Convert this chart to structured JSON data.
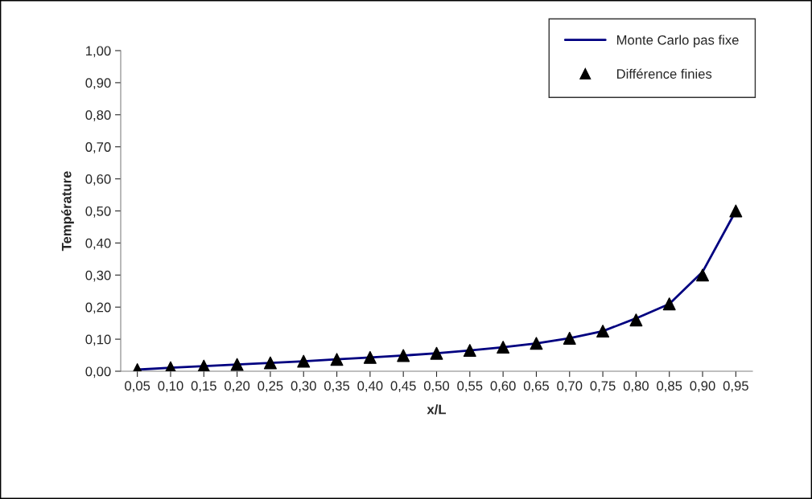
{
  "chart_data": {
    "type": "line",
    "xlabel": "x/L",
    "ylabel": "Température",
    "categories": [
      "0,05",
      "0,10",
      "0,15",
      "0,20",
      "0,25",
      "0,30",
      "0,35",
      "0,40",
      "0,45",
      "0,50",
      "0,55",
      "0,60",
      "0,65",
      "0,70",
      "0,75",
      "0,80",
      "0,85",
      "0,90",
      "0,95"
    ],
    "series": [
      {
        "name": "Monte Carlo pas fixe",
        "color": "#000080",
        "marker": "none",
        "values": [
          0.005,
          0.011,
          0.016,
          0.021,
          0.026,
          0.031,
          0.037,
          0.043,
          0.049,
          0.056,
          0.065,
          0.075,
          0.087,
          0.103,
          0.125,
          0.165,
          0.21,
          0.31,
          0.5
        ]
      },
      {
        "name": "Différence finies",
        "type": "scatter",
        "color": "#000000",
        "marker": "triangle",
        "values": [
          0.005,
          0.011,
          0.016,
          0.021,
          0.026,
          0.031,
          0.037,
          0.043,
          0.049,
          0.056,
          0.065,
          0.075,
          0.087,
          0.103,
          0.125,
          0.16,
          0.21,
          0.3,
          0.5
        ]
      }
    ],
    "ylim": [
      0,
      1
    ],
    "yticks": [
      {
        "value": 0,
        "label": "0,00"
      },
      {
        "value": 0.1,
        "label": "0,10"
      },
      {
        "value": 0.2,
        "label": "0,20"
      },
      {
        "value": 0.3,
        "label": "0,30"
      },
      {
        "value": 0.4,
        "label": "0,40"
      },
      {
        "value": 0.5,
        "label": "0,50"
      },
      {
        "value": 0.6,
        "label": "0,60"
      },
      {
        "value": 0.7,
        "label": "0,70"
      },
      {
        "value": 0.8,
        "label": "0,80"
      },
      {
        "value": 0.9,
        "label": "0,90"
      },
      {
        "value": 1,
        "label": "1,00"
      }
    ],
    "grid": false,
    "legend": "top right"
  }
}
